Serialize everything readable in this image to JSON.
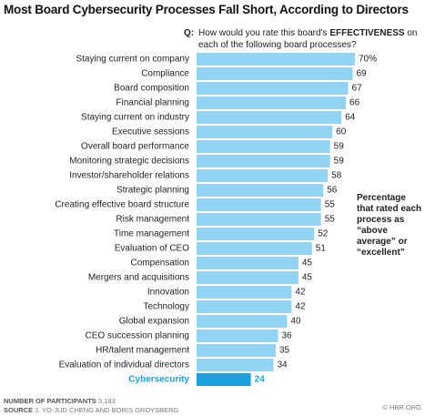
{
  "chart_data": {
    "type": "hbar",
    "title": "Most Board Cybersecurity Processes Fall Short, According to Directors",
    "question_label": "Q:",
    "question": [
      "How would you rate this board’s ",
      "EFFECTIVENESS",
      " on each of the following board processes?"
    ],
    "annotation": "Percentage that rated each process as “above average” or “excellent”",
    "categories": [
      "Staying current on company",
      "Compliance",
      "Board composition",
      "Financial planning",
      "Staying current on industry",
      "Executive sessions",
      "Overall board performance",
      "Monitoring strategic decisions",
      "Investor/shareholder relations",
      "Strategic planning",
      "Creating effective board structure",
      "Risk management",
      "Time management",
      "Evaluation of CEO",
      "Compensation",
      "Mergers and acquisitions",
      "Innovation",
      "Technology",
      "Global expansion",
      "CEO succession planning",
      "HR/talent management",
      "Evaluation of individual directors",
      "Cybersecurity"
    ],
    "values": [
      70,
      69,
      67,
      66,
      64,
      60,
      59,
      59,
      58,
      56,
      55,
      55,
      52,
      51,
      45,
      45,
      42,
      42,
      40,
      36,
      35,
      34,
      24
    ],
    "value_labels": [
      "70%",
      "69",
      "67",
      "66",
      "64",
      "60",
      "59",
      "59",
      "58",
      "56",
      "55",
      "55",
      "52",
      "51",
      "45",
      "45",
      "42",
      "42",
      "40",
      "36",
      "35",
      "34",
      "24"
    ],
    "colors": [
      "#8fd4f5",
      "#8fd4f5",
      "#8fd4f5",
      "#8fd4f5",
      "#8fd4f5",
      "#8fd4f5",
      "#8fd4f5",
      "#8fd4f5",
      "#8fd4f5",
      "#8fd4f5",
      "#8fd4f5",
      "#8fd4f5",
      "#8fd4f5",
      "#8fd4f5",
      "#8fd4f5",
      "#8fd4f5",
      "#8fd4f5",
      "#8fd4f5",
      "#8fd4f5",
      "#8fd4f5",
      "#8fd4f5",
      "#8fd4f5",
      "#1ba3dd"
    ],
    "footer": {
      "participants_label": "NUMBER OF PARTICIPANTS",
      "participants": "3,183",
      "source_label": "SOURCE",
      "source": "J. YO-JUD CHENG AND BORIS GROYSBERG",
      "credit": "© HBR.ORG"
    }
  }
}
